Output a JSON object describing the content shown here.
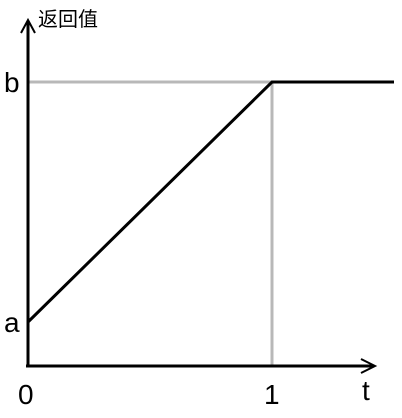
{
  "chart_data": {
    "type": "line",
    "ylabel": "返回值",
    "xlabel": "t",
    "x_ticks": [
      {
        "value": 0,
        "label": "0"
      },
      {
        "value": 1,
        "label": "1"
      }
    ],
    "y_ticks": [
      {
        "value": "a",
        "label": "a"
      },
      {
        "value": "b",
        "label": "b"
      }
    ],
    "series": [
      {
        "points": [
          {
            "x": 0,
            "y": "a"
          },
          {
            "x": 1,
            "y": "b"
          },
          {
            "x": 1.5,
            "y": "b"
          }
        ]
      }
    ],
    "guides": [
      {
        "type": "horizontal",
        "at": "b",
        "from_x": 0,
        "to_x": 1
      },
      {
        "type": "vertical",
        "at": 1,
        "from": "x-axis",
        "to": "b"
      }
    ],
    "colors": {
      "axis": "#000000",
      "line": "#000000",
      "guide": "#b8b8b8"
    },
    "grid": false,
    "legend": "none"
  }
}
